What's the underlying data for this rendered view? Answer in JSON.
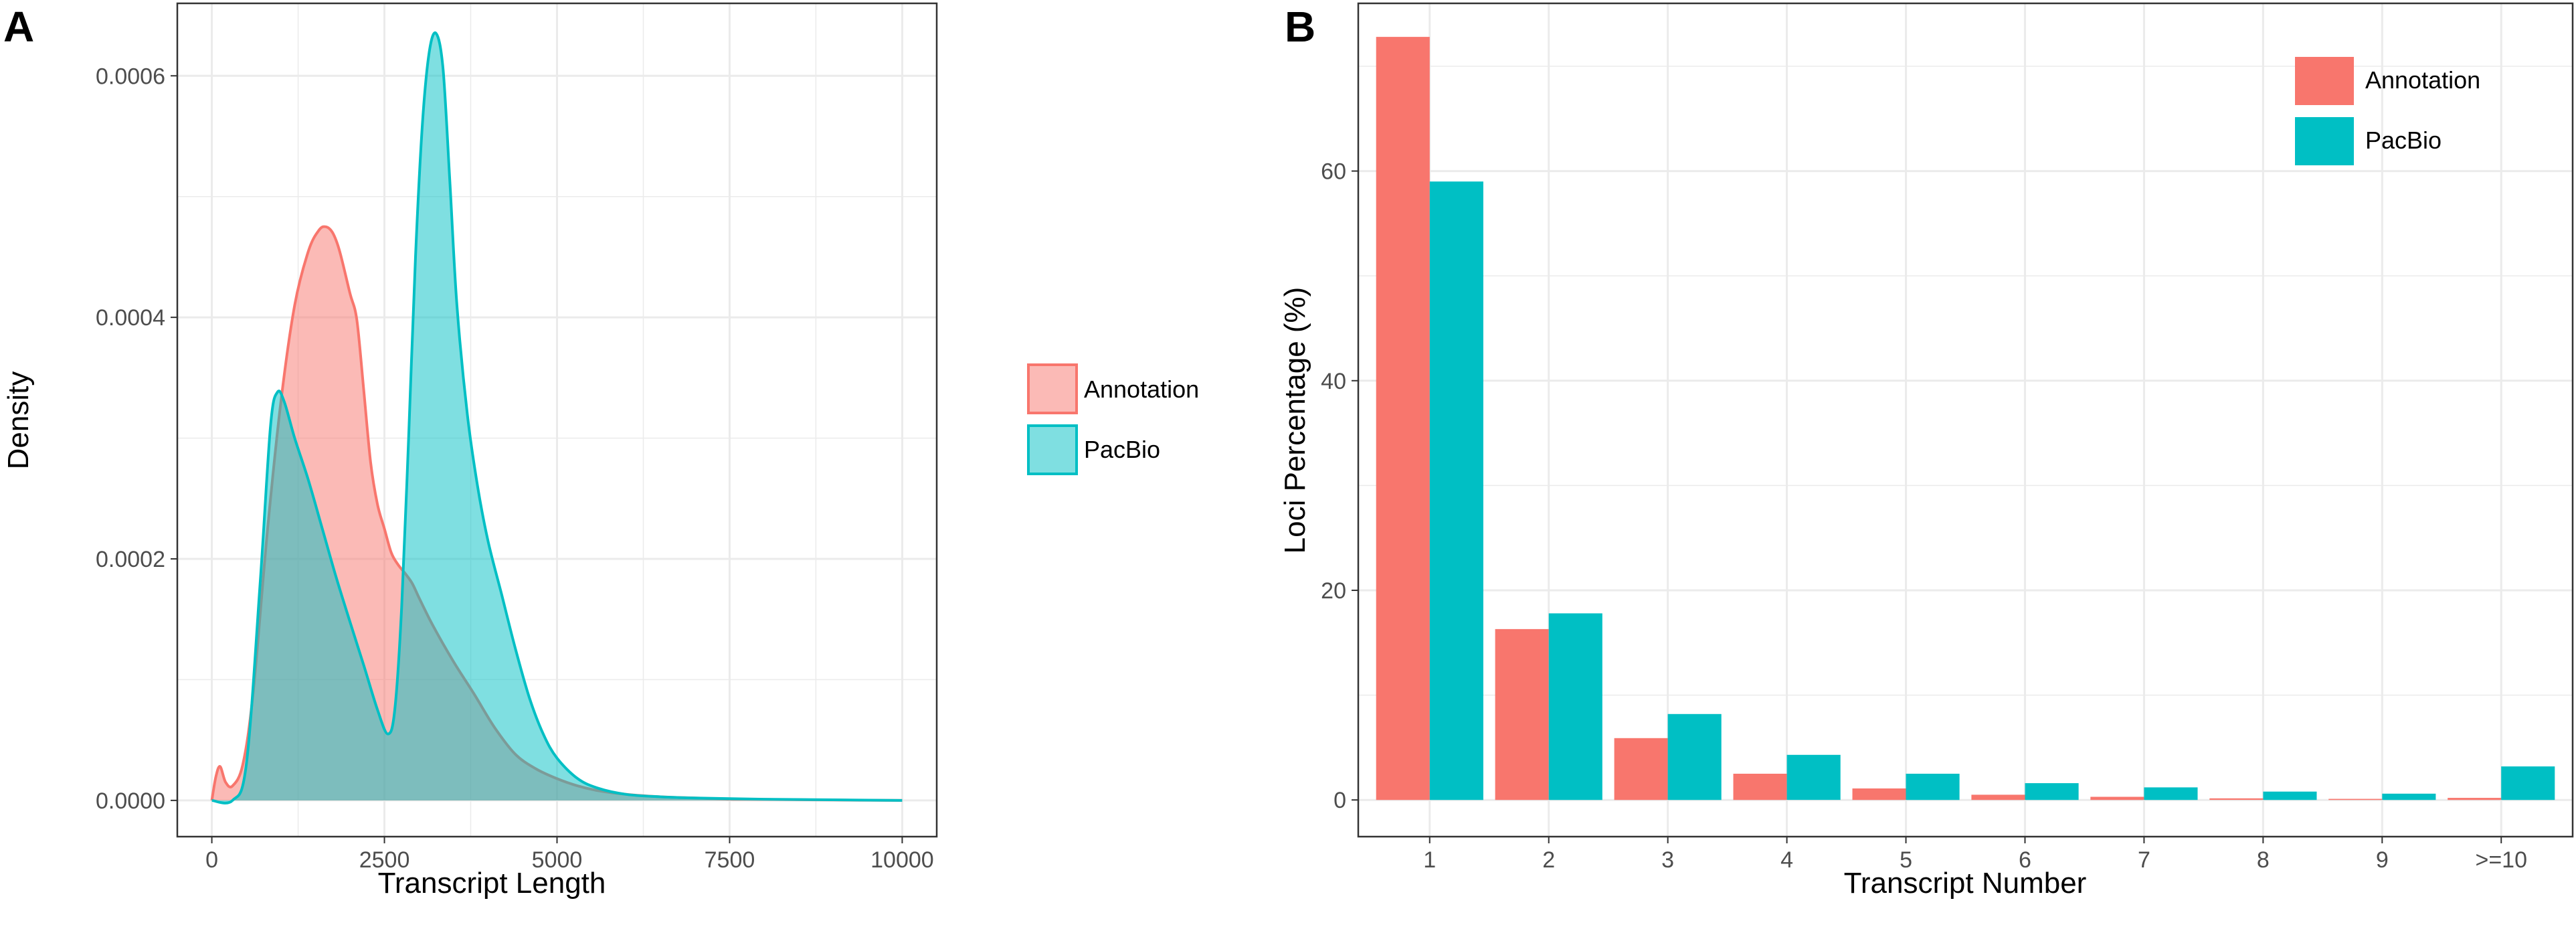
{
  "chart_data": [
    {
      "type": "area",
      "panel_label": "A",
      "title": "",
      "xlabel": "Transcript Length",
      "ylabel": "Density",
      "xlim": [
        -500,
        10500
      ],
      "ylim": [
        -3e-05,
        0.00066
      ],
      "xticks": [
        {
          "value": 0,
          "label": "0"
        },
        {
          "value": 2500,
          "label": "2500"
        },
        {
          "value": 5000,
          "label": "5000"
        },
        {
          "value": 7500,
          "label": "7500"
        },
        {
          "value": 10000,
          "label": "10000"
        }
      ],
      "yticks": [
        {
          "value": 0,
          "label": "0.0000"
        },
        {
          "value": 0.0002,
          "label": "0.0002"
        },
        {
          "value": 0.0004,
          "label": "0.0004"
        },
        {
          "value": 0.0006,
          "label": "0.0006"
        }
      ],
      "grid": true,
      "legend_position": "right",
      "series": [
        {
          "name": "Annotation",
          "label": "Annotation",
          "fill": "#F8766D",
          "x": [
            0,
            60,
            120,
            200,
            300,
            450,
            600,
            800,
            1000,
            1200,
            1400,
            1550,
            1650,
            1750,
            1850,
            2000,
            2100,
            2200,
            2300,
            2400,
            2500,
            2600,
            2700,
            2800,
            2900,
            3000,
            3200,
            3500,
            3800,
            4100,
            4400,
            4700,
            5000,
            5300,
            5600,
            6000,
            6500,
            7000,
            7500,
            8000,
            9000,
            10000
          ],
          "y": [
            0.0,
            2e-05,
            2.8e-05,
            1.5e-05,
            1.2e-05,
            3e-05,
            9e-05,
            0.00022,
            0.00033,
            0.00041,
            0.000455,
            0.000472,
            0.000475,
            0.00047,
            0.000455,
            0.00042,
            0.000398,
            0.00034,
            0.00028,
            0.000245,
            0.000225,
            0.000205,
            0.000195,
            0.000188,
            0.00018,
            0.000168,
            0.000145,
            0.000115,
            8.8e-05,
            6e-05,
            3.8e-05,
            2.6e-05,
            1.8e-05,
            1.2e-05,
            8e-06,
            5e-06,
            3e-06,
            2e-06,
            1e-06,
            8e-07,
            3e-07,
            0.0
          ]
        },
        {
          "name": "PacBio",
          "label": "PacBio",
          "fill": "#00BFC4",
          "x": [
            0,
            300,
            500,
            700,
            850,
            950,
            1050,
            1200,
            1400,
            1600,
            1800,
            2000,
            2200,
            2400,
            2550,
            2650,
            2750,
            2850,
            2950,
            3050,
            3150,
            3250,
            3350,
            3450,
            3550,
            3700,
            3850,
            4000,
            4200,
            4400,
            4600,
            4800,
            5000,
            5300,
            5600,
            6000,
            6500,
            7000,
            8000,
            9000,
            10000
          ],
          "y": [
            0.0,
            0.0,
            3e-05,
            0.00018,
            0.00031,
            0.000338,
            0.00033,
            0.0003,
            0.000265,
            0.000225,
            0.000185,
            0.000148,
            0.000112,
            7.5e-05,
            5.5e-05,
            7.5e-05,
            0.00016,
            0.0003,
            0.00045,
            0.00056,
            0.00062,
            0.000635,
            0.000605,
            0.00051,
            0.00041,
            0.00032,
            0.00026,
            0.000215,
            0.00017,
            0.000125,
            8.5e-05,
            5.5e-05,
            3.5e-05,
            1.8e-05,
            1e-05,
            5e-06,
            3e-06,
            2e-06,
            1e-06,
            5e-07,
            0.0
          ]
        }
      ]
    },
    {
      "type": "bar",
      "panel_label": "B",
      "title": "",
      "xlabel": "Transcript  Number",
      "ylabel": "Loci  Percentage (%)",
      "categories": [
        "1",
        "2",
        "3",
        "4",
        "5",
        "6",
        "7",
        "8",
        "9",
        ">=10"
      ],
      "ylim": [
        -3.5,
        76
      ],
      "yticks": [
        {
          "value": 0,
          "label": "0"
        },
        {
          "value": 20,
          "label": "20"
        },
        {
          "value": 40,
          "label": "40"
        },
        {
          "value": 60,
          "label": "60"
        }
      ],
      "grid": true,
      "legend_position": "top-right",
      "series": [
        {
          "name": "Annotation",
          "label": "Annotation",
          "fill": "#F8766D",
          "values": [
            72.8,
            16.3,
            5.9,
            2.5,
            1.1,
            0.5,
            0.3,
            0.15,
            0.1,
            0.2
          ]
        },
        {
          "name": "PacBio",
          "label": "PacBio",
          "fill": "#00BFC4",
          "values": [
            59.0,
            17.8,
            8.2,
            4.3,
            2.5,
            1.6,
            1.2,
            0.8,
            0.6,
            3.2
          ]
        }
      ]
    }
  ]
}
